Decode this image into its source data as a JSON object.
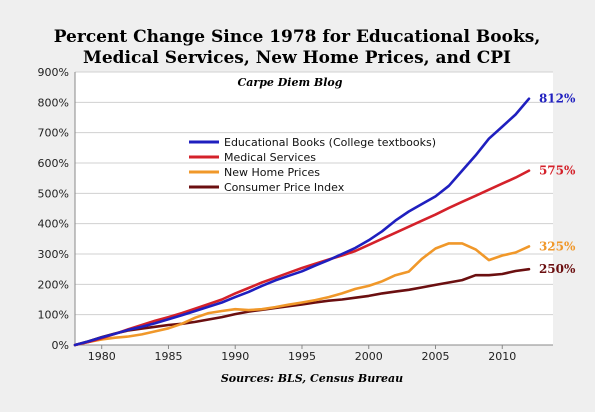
{
  "chart_data": {
    "type": "line",
    "title_line1": "Percent Change Since 1978 for Educational Books,",
    "title_line2": "Medical Services, New Home Prices, and CPI",
    "subtitle": "Carpe Diem Blog",
    "source": "Sources: BLS, Census Bureau",
    "xlim": [
      1978,
      2013.8
    ],
    "ylim": [
      0,
      900
    ],
    "y_ticks": [
      0,
      100,
      200,
      300,
      400,
      500,
      600,
      700,
      800,
      900
    ],
    "y_tick_labels": [
      "0%",
      "100%",
      "200%",
      "300%",
      "400%",
      "500%",
      "600%",
      "700%",
      "800%",
      "900%"
    ],
    "x_ticks": [
      1980,
      1985,
      1990,
      1995,
      2000,
      2005,
      2010
    ],
    "x_tick_labels": [
      "1980",
      "1985",
      "1990",
      "1995",
      "2000",
      "2005",
      "2010"
    ],
    "grid": "horizontal",
    "legend_position": "upper-center",
    "series": [
      {
        "name": "Educational Books  (College textbooks)",
        "color": "#1f1fbf",
        "end_label": "812%",
        "x": [
          1978,
          1979,
          1980,
          1981,
          1982,
          1983,
          1984,
          1985,
          1986,
          1987,
          1988,
          1989,
          1990,
          1991,
          1992,
          1993,
          1994,
          1995,
          1996,
          1997,
          1998,
          1999,
          2000,
          2001,
          2002,
          2003,
          2004,
          2005,
          2006,
          2007,
          2008,
          2009,
          2010,
          2011,
          2012
        ],
        "y": [
          0,
          12,
          25,
          37,
          50,
          60,
          72,
          85,
          98,
          112,
          126,
          140,
          158,
          175,
          195,
          213,
          228,
          243,
          262,
          280,
          300,
          320,
          345,
          375,
          410,
          440,
          465,
          490,
          525,
          575,
          625,
          680,
          720,
          760,
          812
        ]
      },
      {
        "name": "Medical Services",
        "color": "#d4212a",
        "end_label": "575%",
        "x": [
          1978,
          1979,
          1980,
          1981,
          1982,
          1983,
          1984,
          1985,
          1986,
          1987,
          1988,
          1989,
          1990,
          1991,
          1992,
          1993,
          1994,
          1995,
          1996,
          1997,
          1998,
          1999,
          2000,
          2001,
          2002,
          2003,
          2004,
          2005,
          2006,
          2007,
          2008,
          2009,
          2010,
          2011,
          2012
        ],
        "y": [
          0,
          10,
          22,
          37,
          52,
          66,
          80,
          92,
          105,
          120,
          135,
          150,
          170,
          188,
          206,
          222,
          238,
          254,
          268,
          282,
          295,
          310,
          330,
          350,
          370,
          390,
          410,
          430,
          452,
          472,
          492,
          512,
          532,
          552,
          575
        ]
      },
      {
        "name": "New Home Prices",
        "color": "#f0982a",
        "end_label": "325%",
        "x": [
          1978,
          1979,
          1980,
          1981,
          1982,
          1983,
          1984,
          1985,
          1986,
          1987,
          1988,
          1989,
          1990,
          1991,
          1992,
          1993,
          1994,
          1995,
          1996,
          1997,
          1998,
          1999,
          2000,
          2001,
          2002,
          2003,
          2004,
          2005,
          2006,
          2007,
          2008,
          2009,
          2010,
          2011,
          2012
        ],
        "y": [
          0,
          10,
          18,
          24,
          28,
          35,
          45,
          55,
          70,
          90,
          105,
          112,
          118,
          115,
          118,
          125,
          133,
          140,
          148,
          158,
          170,
          185,
          195,
          210,
          230,
          242,
          285,
          318,
          335,
          335,
          315,
          280,
          295,
          305,
          325
        ]
      },
      {
        "name": "Consumer Price Index",
        "color": "#6b0f10",
        "end_label": "250%",
        "x": [
          1978,
          1979,
          1980,
          1981,
          1982,
          1983,
          1984,
          1985,
          1986,
          1987,
          1988,
          1989,
          1990,
          1991,
          1992,
          1993,
          1994,
          1995,
          1996,
          1997,
          1998,
          1999,
          2000,
          2001,
          2002,
          2003,
          2004,
          2005,
          2006,
          2007,
          2008,
          2009,
          2010,
          2011,
          2012
        ],
        "y": [
          0,
          12,
          26,
          38,
          48,
          54,
          60,
          66,
          70,
          76,
          84,
          92,
          102,
          110,
          116,
          122,
          128,
          134,
          140,
          146,
          150,
          156,
          162,
          170,
          176,
          182,
          190,
          198,
          206,
          214,
          230,
          230,
          234,
          244,
          250
        ]
      }
    ]
  }
}
